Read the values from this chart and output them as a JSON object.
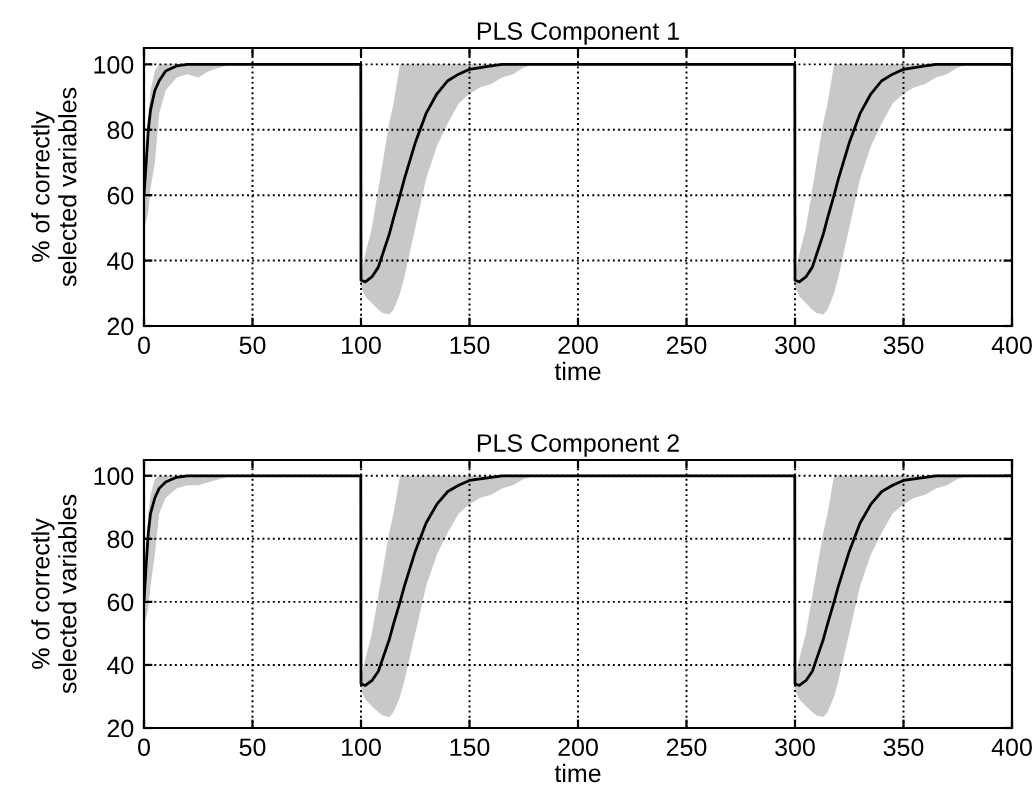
{
  "chart_data": [
    {
      "type": "line",
      "title": "PLS Component 1",
      "xlabel": "time",
      "ylabel": "% of correctly\nselected variables",
      "x": [
        0,
        1,
        2,
        3,
        5,
        7,
        10,
        15,
        20,
        25,
        30,
        35,
        40,
        99.9,
        100,
        102,
        105,
        108,
        110,
        113,
        115,
        118,
        120,
        125,
        130,
        135,
        140,
        145,
        150,
        155,
        160,
        165,
        170,
        175,
        180,
        299.9,
        300,
        302,
        305,
        308,
        310,
        313,
        315,
        318,
        320,
        325,
        330,
        335,
        340,
        345,
        350,
        355,
        360,
        365,
        370,
        375,
        380,
        400
      ],
      "series": [
        {
          "color": "#000000",
          "values": [
            60,
            70,
            80,
            86,
            92,
            95,
            98,
            99.5,
            100,
            100,
            100,
            100,
            100,
            100,
            34,
            33.5,
            35,
            38,
            42,
            48,
            53,
            60,
            65,
            76,
            85,
            91,
            95,
            97,
            98.5,
            99,
            99.5,
            100,
            100,
            100,
            100,
            100,
            34,
            33.5,
            35,
            38,
            42,
            48,
            53,
            60,
            65,
            76,
            85,
            91,
            95,
            97,
            98.5,
            99,
            99.5,
            100,
            100,
            100,
            100,
            100
          ],
          "lower": [
            50,
            52,
            55,
            62,
            70,
            85,
            92,
            96,
            97,
            96,
            98,
            99,
            100,
            100,
            32,
            29,
            27,
            25,
            24,
            23.5,
            25,
            30,
            35,
            50,
            65,
            75,
            82,
            88,
            91,
            93,
            94,
            96,
            97,
            99,
            100,
            100,
            32,
            29,
            27,
            25,
            24,
            23.5,
            25,
            30,
            35,
            50,
            65,
            75,
            82,
            88,
            91,
            93,
            94,
            96,
            97,
            99,
            100,
            100
          ],
          "upper": [
            60,
            75,
            85,
            92,
            98,
            100,
            100,
            100,
            100,
            100,
            100,
            100,
            100,
            100,
            36,
            42,
            50,
            62,
            70,
            82,
            88,
            100,
            100,
            100,
            100,
            100,
            100,
            100,
            100,
            100,
            100,
            100,
            100,
            100,
            100,
            100,
            36,
            42,
            50,
            62,
            70,
            82,
            88,
            100,
            100,
            100,
            100,
            100,
            100,
            100,
            100,
            100,
            100,
            100,
            100,
            100,
            100,
            100
          ]
        }
      ],
      "xlim": [
        0,
        400
      ],
      "ylim": [
        20,
        105
      ],
      "xticks": [
        0,
        50,
        100,
        150,
        200,
        250,
        300,
        350,
        400
      ],
      "yticks": [
        20,
        40,
        60,
        80,
        100
      ],
      "grid": true,
      "line_style": "solid",
      "marker": "none"
    },
    {
      "type": "line",
      "title": "PLS Component 2",
      "xlabel": "time",
      "ylabel": "% of correctly\nselected variables",
      "x": [
        0,
        1,
        2,
        3,
        5,
        7,
        10,
        15,
        20,
        25,
        30,
        35,
        40,
        99.9,
        100,
        102,
        105,
        108,
        110,
        113,
        115,
        118,
        120,
        125,
        130,
        135,
        140,
        145,
        150,
        155,
        160,
        165,
        170,
        175,
        180,
        299.9,
        300,
        302,
        305,
        308,
        310,
        313,
        315,
        318,
        320,
        325,
        330,
        335,
        340,
        345,
        350,
        355,
        360,
        365,
        370,
        375,
        380,
        400
      ],
      "series": [
        {
          "color": "#000000",
          "values": [
            60,
            72,
            82,
            88,
            93,
            96,
            98,
            99.5,
            100,
            100,
            100,
            100,
            100,
            100,
            34,
            33.5,
            35,
            38,
            42,
            48,
            53,
            60,
            65,
            76,
            85,
            91,
            95,
            97,
            98.5,
            99,
            99.5,
            100,
            100,
            100,
            100,
            100,
            34,
            33.5,
            35,
            38,
            42,
            48,
            53,
            60,
            65,
            76,
            85,
            91,
            95,
            97,
            98.5,
            99,
            99.5,
            100,
            100,
            100,
            100,
            100
          ],
          "lower": [
            53,
            55,
            58,
            65,
            75,
            88,
            93,
            96,
            97,
            97,
            98,
            99,
            100,
            100,
            32,
            29,
            27,
            25,
            24,
            23.5,
            25,
            30,
            35,
            50,
            65,
            75,
            82,
            88,
            91,
            93,
            94,
            96,
            97,
            99,
            100,
            100,
            32,
            29,
            27,
            25,
            24,
            23.5,
            25,
            30,
            35,
            50,
            65,
            75,
            82,
            88,
            91,
            93,
            94,
            96,
            97,
            99,
            100,
            100
          ],
          "upper": [
            60,
            78,
            88,
            94,
            99,
            100,
            100,
            100,
            100,
            100,
            100,
            100,
            100,
            100,
            36,
            42,
            50,
            62,
            70,
            82,
            88,
            100,
            100,
            100,
            100,
            100,
            100,
            100,
            100,
            100,
            100,
            100,
            100,
            100,
            100,
            100,
            36,
            42,
            50,
            62,
            70,
            82,
            88,
            100,
            100,
            100,
            100,
            100,
            100,
            100,
            100,
            100,
            100,
            100,
            100,
            100,
            100,
            100
          ]
        }
      ],
      "xlim": [
        0,
        400
      ],
      "ylim": [
        20,
        105
      ],
      "xticks": [
        0,
        50,
        100,
        150,
        200,
        250,
        300,
        350,
        400
      ],
      "yticks": [
        20,
        40,
        60,
        80,
        100
      ],
      "grid": true,
      "line_style": "solid",
      "marker": "none"
    }
  ]
}
